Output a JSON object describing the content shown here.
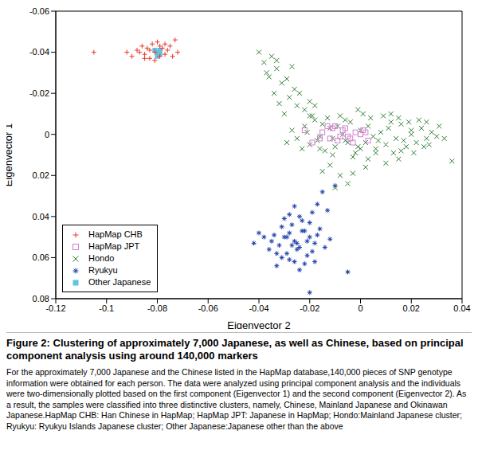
{
  "chart_data": {
    "type": "scatter",
    "title": "Figure 2: Clustering of approximately 7,000 Japanese, as well as Chinese, based on principal component analysis using around 140,000 markers",
    "subtitle": "For the approximately 7,000 Japanese and the Chinese listed in the HapMap database,140,000 pieces of SNP genotype information were obtained for each person. The data were analyzed using principal component analysis and the individuals were two-dimensionally plotted based on the first component (Eigenvector 1) and the second component (Eigenvector 2). As a result, the samples were classified into three distinctive clusters, namely, Chinese, Mainland Japanese and Okinawan Japanese.HapMap CHB: Han Chinese in HapMap; HapMap JPT: Japanese in HapMap; Hondo:Mainland Japanese cluster; Ryukyu: Ryukyu Islands Japanese cluster; Other Japanese:Japanese other than the above",
    "x_label": "Eigenvector 2",
    "y_label": "Eigenvector 1",
    "xlim": [
      -0.12,
      0.04
    ],
    "xticks": [
      -0.12,
      -0.1,
      -0.08,
      -0.06,
      -0.04,
      -0.02,
      0,
      0.02,
      0.04
    ],
    "ylim": [
      0.08,
      -0.06
    ],
    "yticks": [
      0.08,
      0.06,
      0.04,
      0.02,
      0,
      -0.02,
      -0.04,
      -0.06
    ],
    "grid": false,
    "legend": "lower left",
    "series": [
      {
        "name": "HapMap CHB",
        "color": "#e8392c",
        "marker": "plus",
        "x": [
          -0.105,
          -0.092,
          -0.09,
          -0.088,
          -0.086,
          -0.085,
          -0.084,
          -0.083,
          -0.082,
          -0.081,
          -0.08,
          -0.079,
          -0.078,
          -0.077,
          -0.076,
          -0.075,
          -0.074,
          -0.073,
          -0.087,
          -0.083,
          -0.081,
          -0.079,
          -0.077,
          -0.085,
          -0.072
        ],
        "values": [
          -0.04,
          -0.04,
          -0.038,
          -0.041,
          -0.043,
          -0.039,
          -0.042,
          -0.037,
          -0.044,
          -0.04,
          -0.045,
          -0.038,
          -0.042,
          -0.039,
          -0.041,
          -0.043,
          -0.038,
          -0.046,
          -0.04,
          -0.041,
          -0.036,
          -0.043,
          -0.044,
          -0.037,
          -0.04
        ]
      },
      {
        "name": "HapMap JPT",
        "color": "#d47fd0",
        "marker": "square_open",
        "x": [
          -0.022,
          -0.019,
          -0.015,
          -0.012,
          -0.01,
          -0.008,
          -0.006,
          -0.004,
          -0.002,
          0.0,
          0.001,
          0.003,
          -0.013,
          -0.009,
          -0.005,
          -0.016,
          0.002,
          -0.011,
          -0.007,
          -0.003
        ],
        "values": [
          -0.002,
          0.004,
          -0.001,
          0.002,
          -0.004,
          0.001,
          -0.003,
          0.002,
          -0.001,
          0.0,
          -0.002,
          0.003,
          -0.004,
          0.003,
          0.001,
          0.002,
          -0.001,
          -0.003,
          -0.002,
          0.004
        ]
      },
      {
        "name": "Hondo",
        "color": "#2e7d32",
        "marker": "x",
        "x": [
          -0.025,
          -0.022,
          -0.02,
          -0.018,
          -0.016,
          -0.014,
          -0.012,
          -0.01,
          -0.008,
          -0.006,
          -0.004,
          -0.002,
          0.0,
          0.002,
          0.004,
          0.006,
          0.008,
          0.01,
          0.012,
          0.014,
          0.016,
          0.018,
          0.02,
          0.022,
          0.024,
          0.026,
          0.028,
          0.03,
          -0.027,
          -0.023,
          -0.019,
          -0.015,
          -0.011,
          -0.007,
          -0.003,
          0.001,
          0.005,
          0.009,
          0.013,
          0.017,
          0.021,
          0.025,
          -0.021,
          -0.017,
          -0.013,
          -0.009,
          -0.005,
          -0.001,
          0.003,
          0.007,
          0.011,
          0.015,
          0.019,
          0.023,
          0.027,
          0.031,
          0.033,
          -0.029,
          0.003,
          -0.001,
          -0.03,
          -0.032,
          -0.034,
          -0.036,
          -0.038,
          -0.04,
          -0.035,
          -0.033,
          -0.028,
          -0.025,
          -0.022,
          -0.026,
          -0.031,
          -0.02,
          -0.037,
          -0.029,
          -0.024,
          -0.018,
          -0.033,
          -0.027,
          -0.012,
          -0.008,
          -0.015,
          -0.005,
          0.002,
          -0.01,
          0.01,
          0.036,
          0.015,
          -0.003,
          -0.016,
          -0.006,
          0.006,
          0.016,
          0.026,
          -0.011,
          0.0,
          0.012,
          0.02,
          -0.02
        ],
        "values": [
          0.002,
          -0.004,
          0.005,
          -0.007,
          0.001,
          0.008,
          -0.003,
          0.006,
          -0.009,
          0.003,
          -0.006,
          0.009,
          -0.002,
          0.004,
          -0.008,
          0.007,
          -0.001,
          0.005,
          -0.006,
          0.002,
          -0.005,
          0.006,
          -0.002,
          0.004,
          -0.003,
          0.002,
          -0.001,
          0.001,
          -0.002,
          0.007,
          -0.009,
          -0.005,
          0.01,
          0.0,
          0.011,
          -0.01,
          0.001,
          -0.009,
          0.009,
          0.003,
          0.009,
          0.006,
          -0.001,
          0.003,
          -0.008,
          -0.004,
          0.004,
          0.006,
          -0.004,
          0.003,
          -0.003,
          -0.008,
          -0.006,
          -0.007,
          0.005,
          -0.004,
          0.002,
          0.004,
          0.012,
          -0.012,
          -0.01,
          -0.015,
          -0.02,
          -0.028,
          -0.035,
          -0.04,
          -0.038,
          -0.032,
          -0.018,
          -0.014,
          -0.012,
          -0.022,
          -0.025,
          -0.016,
          -0.03,
          -0.027,
          -0.02,
          -0.014,
          -0.036,
          -0.033,
          0.015,
          0.02,
          0.018,
          0.024,
          0.016,
          0.026,
          0.014,
          0.013,
          0.012,
          0.019,
          0.007,
          -0.007,
          0.009,
          0.008,
          -0.006,
          0.002,
          0.007,
          -0.01,
          0.0,
          -0.009
        ]
      },
      {
        "name": "Ryukyu",
        "color": "#1f3fa8",
        "marker": "star",
        "x": [
          -0.03,
          -0.028,
          -0.026,
          -0.024,
          -0.022,
          -0.02,
          -0.032,
          -0.034,
          -0.018,
          -0.016,
          -0.029,
          -0.027,
          -0.025,
          -0.023,
          -0.021,
          -0.019,
          -0.031,
          -0.033,
          -0.035,
          -0.017,
          -0.026,
          -0.024,
          -0.028,
          -0.022,
          -0.03,
          -0.02,
          -0.036,
          -0.014,
          -0.038,
          -0.012,
          -0.025,
          -0.027,
          -0.023,
          -0.029,
          -0.021,
          -0.031,
          -0.019,
          -0.024,
          -0.026,
          -0.028,
          -0.005,
          -0.01,
          -0.015,
          -0.02,
          -0.04,
          -0.013,
          -0.033,
          -0.018,
          -0.017,
          -0.042
        ],
        "values": [
          0.05,
          0.048,
          0.052,
          0.055,
          0.047,
          0.05,
          0.054,
          0.049,
          0.053,
          0.046,
          0.058,
          0.044,
          0.056,
          0.042,
          0.059,
          0.057,
          0.045,
          0.058,
          0.052,
          0.049,
          0.062,
          0.04,
          0.061,
          0.063,
          0.041,
          0.043,
          0.056,
          0.055,
          0.05,
          0.051,
          0.053,
          0.054,
          0.047,
          0.05,
          0.052,
          0.06,
          0.038,
          0.066,
          0.035,
          0.039,
          0.067,
          0.025,
          0.028,
          0.077,
          0.048,
          0.037,
          0.064,
          0.062,
          0.034,
          0.053
        ]
      },
      {
        "name": "Other Japanese",
        "color": "#5fc4e0",
        "marker": "square",
        "x": [
          -0.081,
          -0.08,
          -0.079,
          -0.08,
          -0.079
        ],
        "values": [
          -0.041,
          -0.04,
          -0.039,
          -0.038,
          -0.041
        ]
      }
    ]
  }
}
